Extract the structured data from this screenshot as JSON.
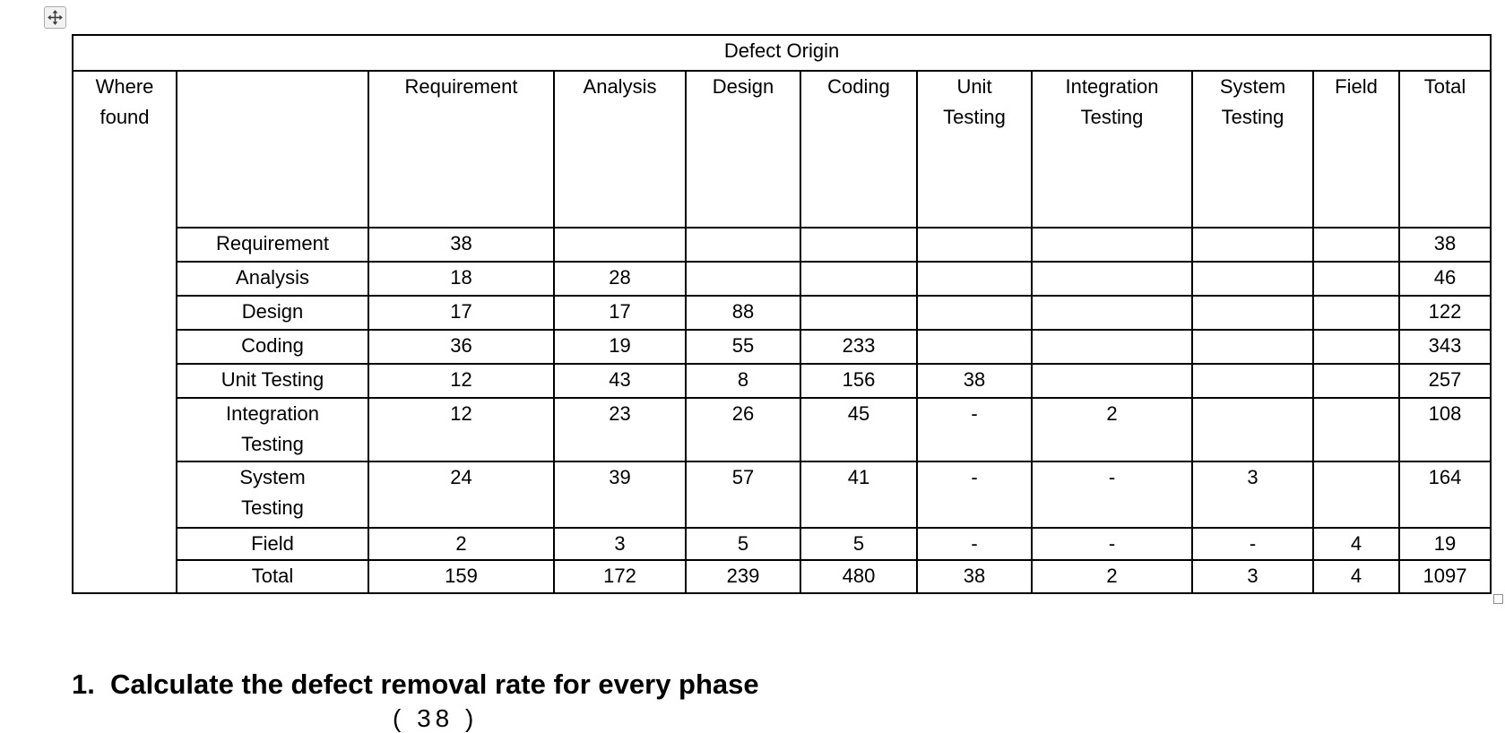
{
  "table": {
    "title": "Defect Origin",
    "corner_label": "Where\nfound",
    "columns": [
      "Requirement",
      "Analysis",
      "Design",
      "Coding",
      "Unit\nTesting",
      "Integration\nTesting",
      "System\nTesting",
      "Field",
      "Total"
    ],
    "rows": [
      {
        "label": "Requirement",
        "values": [
          "38",
          "",
          "",
          "",
          "",
          "",
          "",
          "",
          "38"
        ]
      },
      {
        "label": "Analysis",
        "values": [
          "18",
          "28",
          "",
          "",
          "",
          "",
          "",
          "",
          "46"
        ]
      },
      {
        "label": "Design",
        "values": [
          "17",
          "17",
          "88",
          "",
          "",
          "",
          "",
          "",
          "122"
        ]
      },
      {
        "label": "Coding",
        "values": [
          "36",
          "19",
          "55",
          "233",
          "",
          "",
          "",
          "",
          "343"
        ]
      },
      {
        "label": "Unit Testing",
        "values": [
          "12",
          "43",
          "8",
          "156",
          "38",
          "",
          "",
          "",
          "257"
        ]
      },
      {
        "label": "Integration\nTesting",
        "values": [
          "12",
          "23",
          "26",
          "45",
          "-",
          "2",
          "",
          "",
          "108"
        ]
      },
      {
        "label": "System\nTesting",
        "values": [
          "24",
          "39",
          "57",
          "41",
          "-",
          "-",
          "3",
          "",
          "164"
        ]
      },
      {
        "label": "Field",
        "values": [
          "2",
          "3",
          "5",
          "5",
          "-",
          "-",
          "-",
          "4",
          "19"
        ]
      },
      {
        "label": "Total",
        "values": [
          "159",
          "172",
          "239",
          "480",
          "38",
          "2",
          "3",
          "4",
          "1097"
        ]
      }
    ]
  },
  "question": {
    "number": "1.",
    "text": "Calculate the defect removal rate for every phase"
  },
  "partial_formula": "( 38 )",
  "icons": {
    "move_handle": "four-way-move-arrow",
    "resize_handle": "table-resize-square"
  }
}
